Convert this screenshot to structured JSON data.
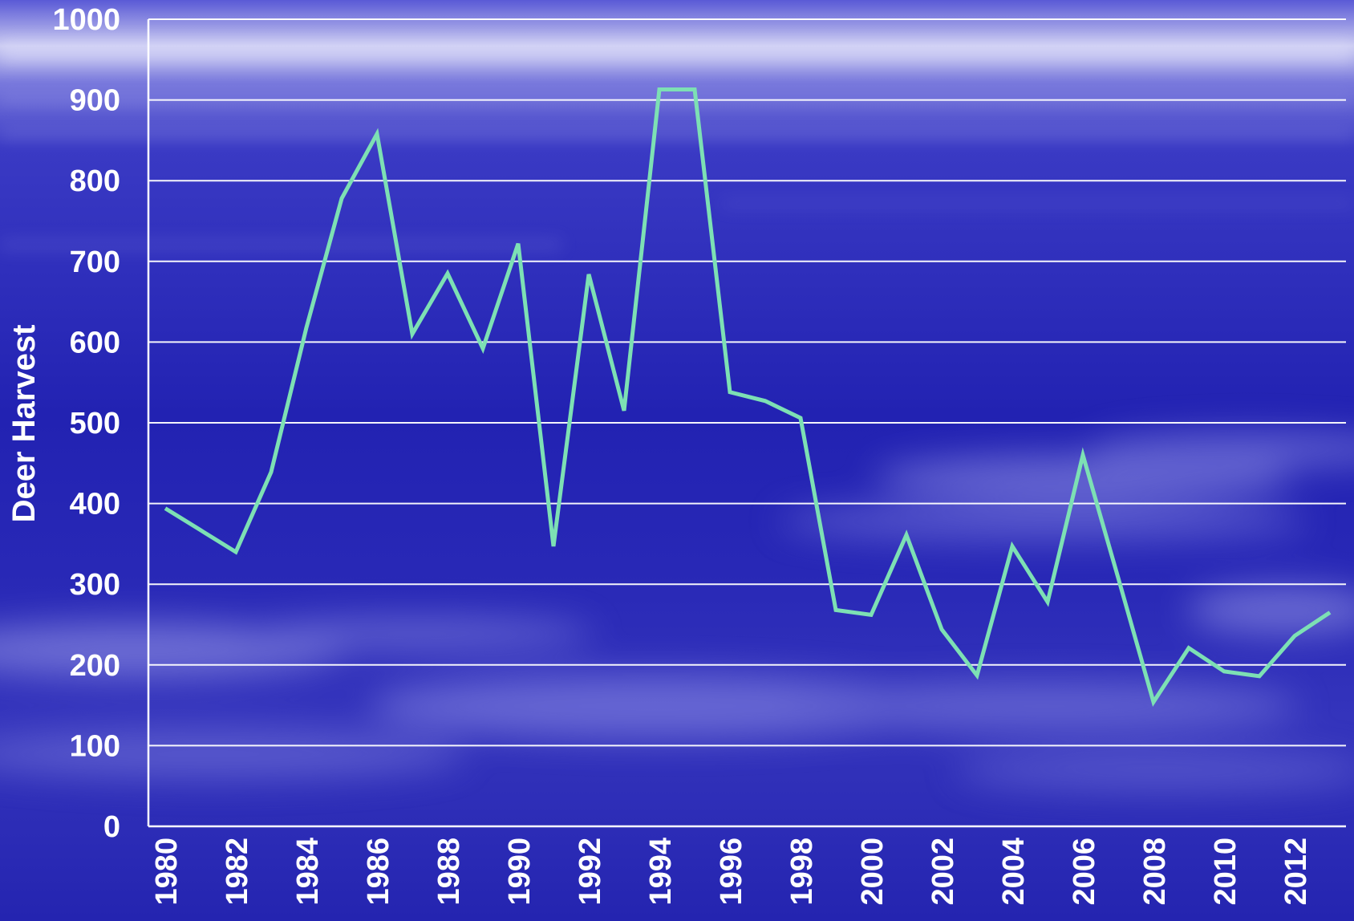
{
  "chart_data": {
    "type": "line",
    "title": "",
    "xlabel": "",
    "ylabel": "Deer Harvest",
    "ylim": [
      0,
      1000
    ],
    "yticks": [
      0,
      100,
      200,
      300,
      400,
      500,
      600,
      700,
      800,
      900,
      1000
    ],
    "xlim": [
      1980,
      2013
    ],
    "xtick_labels": [
      "1980",
      "1982",
      "1984",
      "1986",
      "1988",
      "1990",
      "1992",
      "1994",
      "1996",
      "1998",
      "2000",
      "2002",
      "2004",
      "2006",
      "2008",
      "2010",
      "2012"
    ],
    "grid": true,
    "legend": "none",
    "series": [
      {
        "color": "#7de0b4",
        "x": [
          1980,
          1981,
          1982,
          1983,
          1984,
          1985,
          1986,
          1987,
          1988,
          1989,
          1990,
          1991,
          1992,
          1993,
          1994,
          1995,
          1996,
          1997,
          1998,
          1999,
          2000,
          2001,
          2002,
          2003,
          2004,
          2005,
          2006,
          2007,
          2008,
          2009,
          2010,
          2011,
          2012,
          2013
        ],
        "values": [
          394,
          367,
          340,
          439,
          618,
          778,
          858,
          610,
          685,
          592,
          722,
          347,
          684,
          515,
          913,
          913,
          538,
          527,
          506,
          268,
          262,
          361,
          244,
          187,
          347,
          278,
          460,
          308,
          154,
          221,
          192,
          186,
          236,
          265
        ]
      }
    ]
  },
  "colors": {
    "background_top": "#4a4ad0",
    "background_main": "#2626b4",
    "line": "#7de0b4",
    "text": "#ffffff"
  }
}
